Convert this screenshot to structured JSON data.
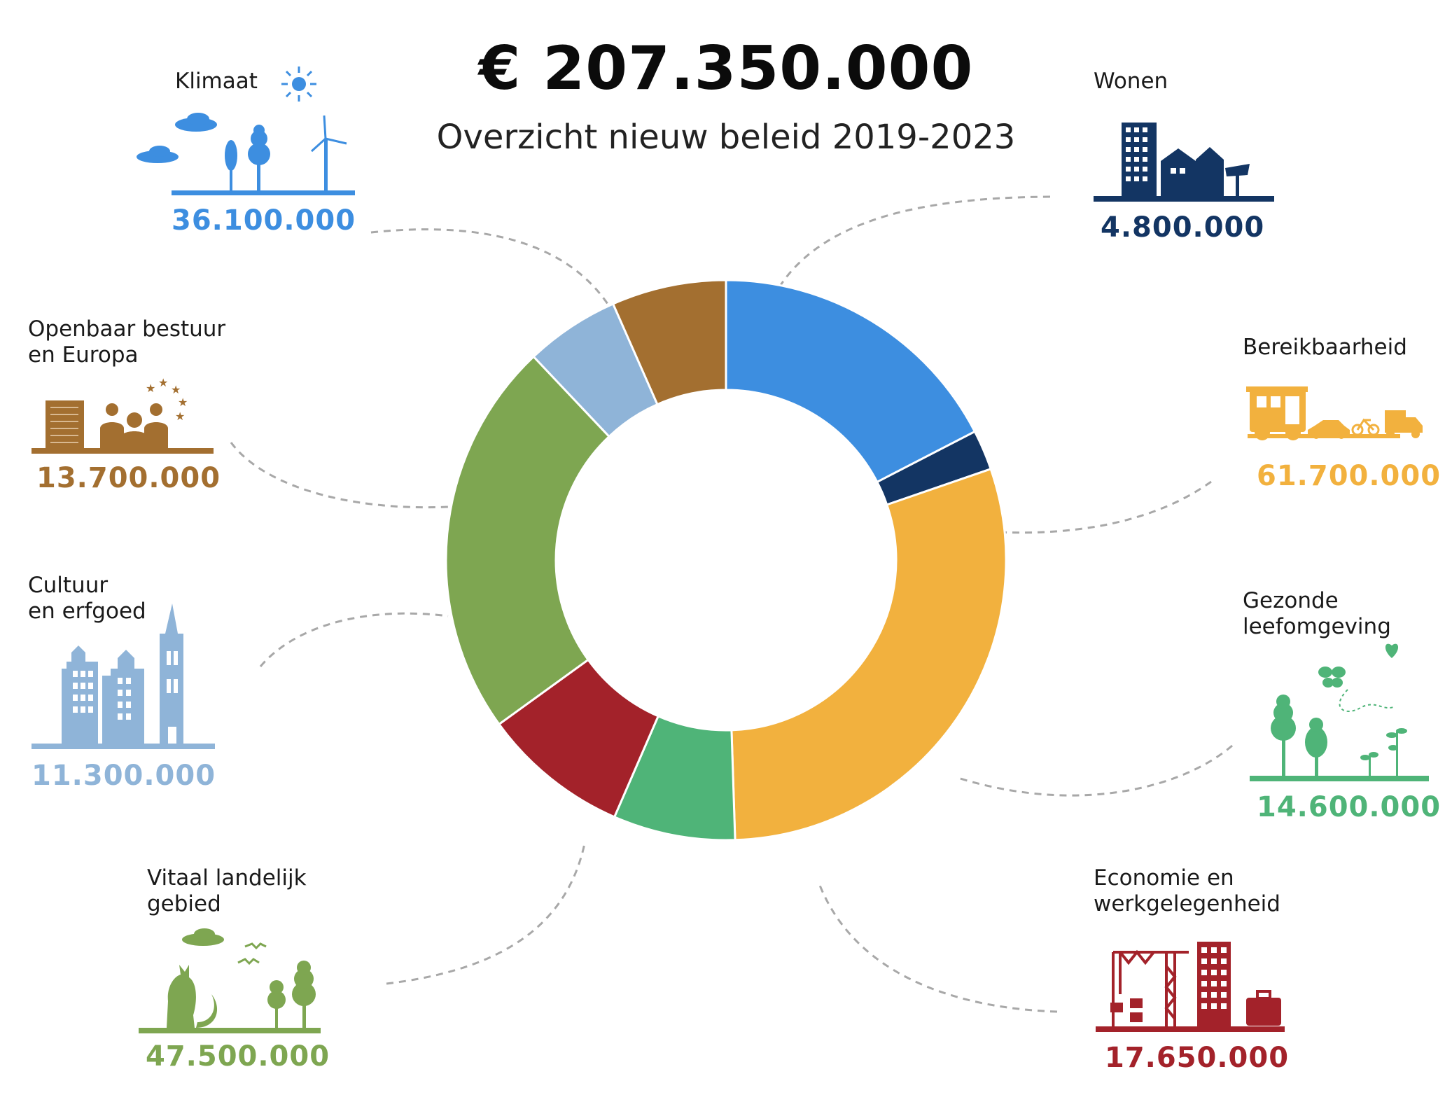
{
  "header": {
    "total": "€ 207.350.000",
    "subtitle": "Overzicht nieuw beleid 2019-2023"
  },
  "categories": [
    {
      "key": "klimaat",
      "label": "Klimaat",
      "amount": "36.100.000",
      "color": "#3d8ee0",
      "icon": "climate-icon"
    },
    {
      "key": "wonen",
      "label": "Wonen",
      "amount": "4.800.000",
      "color": "#133563",
      "icon": "housing-icon"
    },
    {
      "key": "bereikbaarheid",
      "label": "Bereikbaarheid",
      "amount": "61.700.000",
      "color": "#f2b13e",
      "icon": "transport-icon"
    },
    {
      "key": "gezonde",
      "label": "Gezonde\nleefomgeving",
      "amount": "14.600.000",
      "color": "#4fb478",
      "icon": "healthy-environment-icon"
    },
    {
      "key": "economie",
      "label": "Economie en\nwerkgelegenheid",
      "amount": "17.650.000",
      "color": "#a3222a",
      "icon": "economy-icon"
    },
    {
      "key": "vitaal",
      "label": "Vitaal landelijk\ngebied",
      "amount": "47.500.000",
      "color": "#7ea651",
      "icon": "rural-icon"
    },
    {
      "key": "cultuur",
      "label": "Cultuur\nen erfgoed",
      "amount": "11.300.000",
      "color": "#8fb4d8",
      "icon": "heritage-icon"
    },
    {
      "key": "openbaar",
      "label": "Openbaar bestuur\nen Europa",
      "amount": "13.700.000",
      "color": "#a36f30",
      "icon": "governance-icon"
    }
  ],
  "chart_data": {
    "type": "pie",
    "variant": "donut",
    "title": "€ 207.350.000",
    "subtitle": "Overzicht nieuw beleid 2019-2023",
    "total": 207350000,
    "start": "12 o'clock",
    "direction": "clockwise",
    "slices": [
      {
        "label": "Klimaat",
        "value": 36100000,
        "color": "#3d8ee0"
      },
      {
        "label": "Wonen",
        "value": 4800000,
        "color": "#133563"
      },
      {
        "label": "Bereikbaarheid",
        "value": 61700000,
        "color": "#f2b13e"
      },
      {
        "label": "Gezonde leefomgeving",
        "value": 14600000,
        "color": "#4fb478"
      },
      {
        "label": "Economie en werkgelegenheid",
        "value": 17650000,
        "color": "#a3222a"
      },
      {
        "label": "Vitaal landelijk gebied",
        "value": 47500000,
        "color": "#7ea651"
      },
      {
        "label": "Cultuur en erfgoed",
        "value": 11300000,
        "color": "#8fb4d8"
      },
      {
        "label": "Openbaar bestuur en Europa",
        "value": 13700000,
        "color": "#a36f30"
      }
    ]
  }
}
